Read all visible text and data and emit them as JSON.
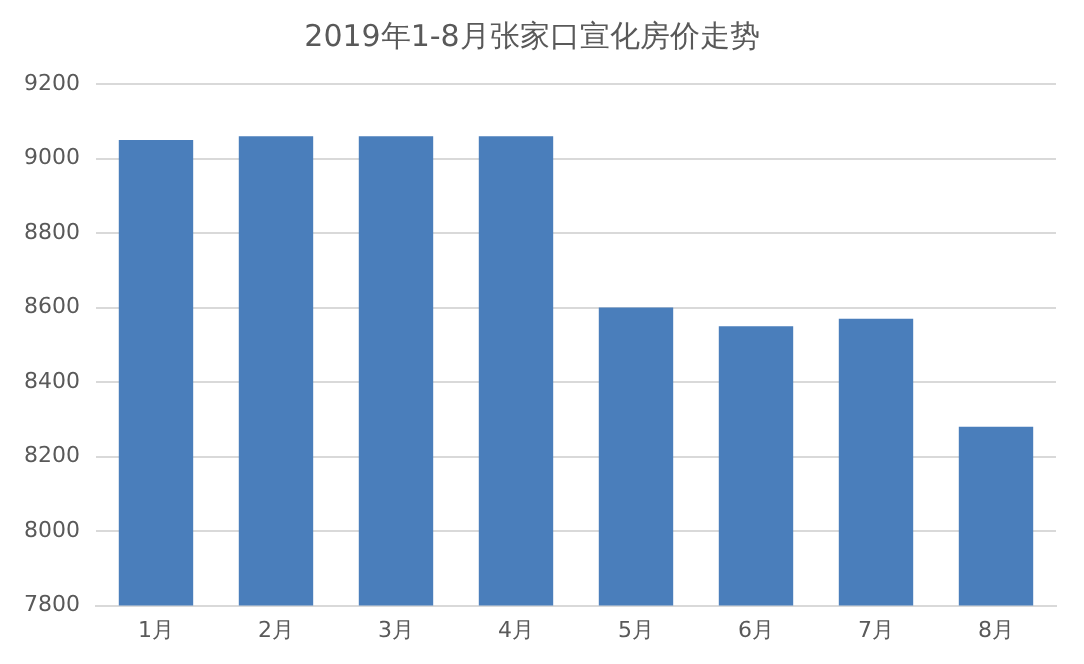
{
  "chart_data": {
    "type": "bar",
    "title": "2019年1-8月张家口宣化房价走势",
    "categories": [
      "1月",
      "2月",
      "3月",
      "4月",
      "5月",
      "6月",
      "7月",
      "8月"
    ],
    "values": [
      9050,
      9060,
      9060,
      9060,
      8600,
      8550,
      8570,
      8280
    ],
    "color": "#4a7ebb",
    "ylim": [
      7800,
      9200
    ],
    "yticks": [
      7800,
      8000,
      8200,
      8400,
      8600,
      8800,
      9000,
      9200
    ],
    "grid": "y",
    "legend": false
  }
}
